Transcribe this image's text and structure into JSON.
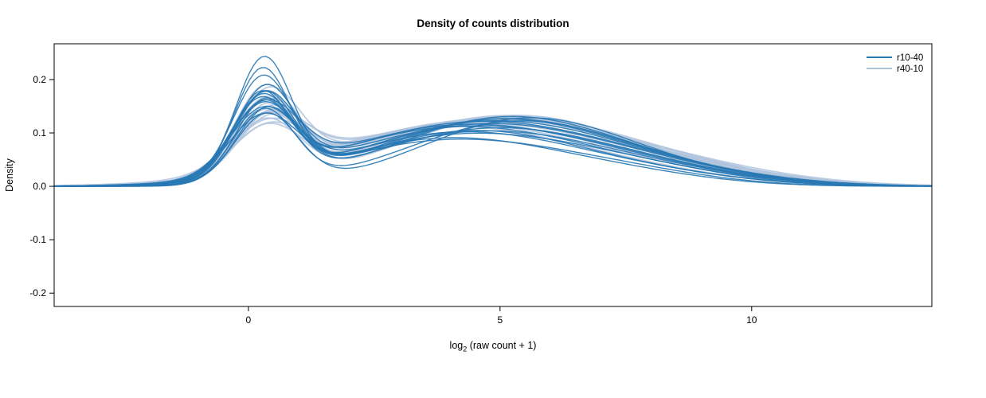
{
  "chart_data": {
    "type": "line",
    "subtype": "density-curves",
    "title": "Density of counts distribution",
    "xlabel": "log2 (raw count + 1)",
    "xlabel_parts": {
      "prefix": "log",
      "sub": "2",
      "suffix": " (raw count + 1)"
    },
    "ylabel": "Density",
    "xlim": [
      -3.86,
      13.58
    ],
    "ylim": [
      -0.225,
      0.267
    ],
    "xticks": [
      0,
      5,
      10
    ],
    "xtick_labels": [
      "0",
      "5",
      "10"
    ],
    "yticks": [
      -0.2,
      -0.1,
      0.0,
      0.1,
      0.2
    ],
    "ytick_labels": [
      "-0.2",
      "-0.1",
      "0.0",
      "0.1",
      "0.2"
    ],
    "grid": false,
    "legend": {
      "position": "top-right",
      "entries": [
        {
          "label": "r10-40",
          "color": "#2878b4"
        },
        {
          "label": "r40-10",
          "color": "#b0c4de"
        }
      ]
    },
    "curve_model": "y(x) = a1*exp(-((x-m1)^2)/(2*s1^2)) + a2*exp(-((x-m2)^2)/(2*s2^2)) + a3*exp(-((x-m3)^2)/(2*s3^2)); params per curve: [a1,m1,s1,a2,m2,s2,a3,m3,s3]",
    "series": [
      {
        "name": "r40-10",
        "color": "#b0c4de",
        "line_width": 1.8,
        "opacity": 0.85,
        "curves": [
          [
            0.15,
            0.4,
            0.62,
            0.115,
            4.2,
            2.5,
            0.02,
            8.0,
            2.0
          ],
          [
            0.135,
            0.35,
            0.64,
            0.12,
            4.5,
            2.6,
            0.022,
            8.2,
            2.1
          ],
          [
            0.125,
            0.42,
            0.66,
            0.125,
            4.8,
            2.5,
            0.018,
            8.5,
            2.0
          ],
          [
            0.118,
            0.38,
            0.65,
            0.13,
            5.0,
            2.4,
            0.016,
            8.7,
            1.9
          ],
          [
            0.11,
            0.33,
            0.67,
            0.122,
            4.6,
            2.7,
            0.02,
            8.4,
            2.2
          ],
          [
            0.105,
            0.45,
            0.68,
            0.118,
            4.3,
            2.6,
            0.024,
            8.1,
            2.1
          ],
          [
            0.098,
            0.36,
            0.7,
            0.128,
            5.2,
            2.5,
            0.014,
            9.0,
            1.8
          ],
          [
            0.092,
            0.4,
            0.72,
            0.124,
            4.9,
            2.6,
            0.018,
            8.6,
            2.0
          ],
          [
            0.14,
            0.3,
            0.6,
            0.112,
            4.0,
            2.5,
            0.022,
            7.8,
            2.1
          ],
          [
            0.13,
            0.37,
            0.63,
            0.116,
            4.4,
            2.6,
            0.02,
            8.3,
            2.0
          ],
          [
            0.122,
            0.43,
            0.65,
            0.126,
            5.1,
            2.4,
            0.015,
            8.8,
            1.9
          ],
          [
            0.115,
            0.34,
            0.67,
            0.132,
            5.3,
            2.3,
            0.012,
            9.1,
            1.7
          ],
          [
            0.108,
            0.39,
            0.69,
            0.12,
            4.7,
            2.6,
            0.019,
            8.5,
            2.0
          ],
          [
            0.1,
            0.41,
            0.71,
            0.114,
            4.2,
            2.7,
            0.023,
            8.0,
            2.2
          ],
          [
            0.155,
            0.32,
            0.59,
            0.108,
            3.9,
            2.4,
            0.021,
            7.6,
            2.0
          ],
          [
            0.128,
            0.36,
            0.62,
            0.118,
            4.6,
            2.5,
            0.017,
            8.4,
            1.9
          ],
          [
            0.112,
            0.44,
            0.66,
            0.124,
            5.0,
            2.5,
            0.016,
            8.9,
            1.9
          ],
          [
            0.095,
            0.38,
            0.73,
            0.121,
            4.8,
            2.7,
            0.02,
            8.7,
            2.1
          ]
        ]
      },
      {
        "name": "r10-40",
        "color": "#2878b4",
        "line_width": 1.4,
        "opacity": 0.9,
        "curves": [
          [
            0.22,
            0.3,
            0.55,
            0.085,
            4.0,
            2.3,
            0.02,
            7.5,
            1.8
          ],
          [
            0.185,
            0.28,
            0.58,
            0.095,
            4.3,
            2.4,
            0.022,
            7.8,
            1.9
          ],
          [
            0.17,
            0.35,
            0.6,
            0.1,
            4.6,
            2.4,
            0.018,
            8.2,
            2.0
          ],
          [
            0.15,
            0.32,
            0.62,
            0.11,
            4.4,
            2.5,
            0.02,
            8.0,
            1.9
          ],
          [
            0.145,
            0.25,
            0.6,
            0.12,
            4.8,
            2.5,
            0.015,
            8.5,
            2.0
          ],
          [
            0.14,
            0.3,
            0.65,
            0.125,
            5.0,
            2.4,
            0.012,
            8.8,
            1.8
          ],
          [
            0.135,
            0.38,
            0.62,
            0.13,
            5.2,
            2.3,
            0.01,
            9.0,
            1.7
          ],
          [
            0.13,
            0.28,
            0.6,
            0.118,
            4.5,
            2.6,
            0.018,
            8.3,
            2.1
          ],
          [
            0.128,
            0.33,
            0.66,
            0.112,
            4.2,
            2.5,
            0.022,
            7.9,
            2.0
          ],
          [
            0.142,
            0.27,
            0.57,
            0.105,
            4.0,
            2.4,
            0.025,
            7.6,
            2.2
          ],
          [
            0.138,
            0.31,
            0.61,
            0.122,
            5.4,
            2.2,
            0.012,
            9.2,
            1.6
          ],
          [
            0.132,
            0.36,
            0.63,
            0.128,
            5.6,
            2.1,
            0.01,
            9.4,
            1.5
          ],
          [
            0.125,
            0.29,
            0.67,
            0.115,
            4.7,
            2.5,
            0.016,
            8.4,
            1.9
          ],
          [
            0.148,
            0.34,
            0.58,
            0.108,
            4.9,
            2.4,
            0.014,
            8.6,
            1.8
          ],
          [
            0.155,
            0.26,
            0.56,
            0.098,
            4.1,
            2.3,
            0.02,
            7.7,
            2.0
          ],
          [
            0.16,
            0.32,
            0.59,
            0.102,
            4.4,
            2.2,
            0.017,
            8.1,
            1.9
          ],
          [
            0.12,
            0.3,
            0.69,
            0.126,
            5.1,
            2.4,
            0.011,
            8.9,
            1.7
          ],
          [
            0.2,
            0.27,
            0.55,
            0.088,
            3.9,
            2.2,
            0.019,
            7.4,
            1.8
          ]
        ]
      }
    ]
  }
}
